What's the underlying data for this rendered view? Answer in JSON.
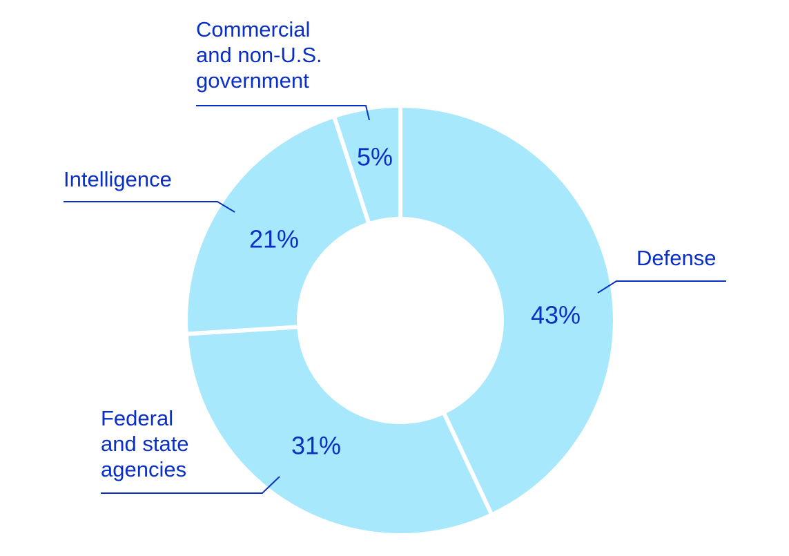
{
  "chart_data": {
    "type": "pie",
    "title": "",
    "style": "donut",
    "slices": [
      {
        "label": "Defense",
        "label_lines": [
          "Defense"
        ],
        "value": 43,
        "value_label": "43%"
      },
      {
        "label": "Federal and state agencies",
        "label_lines": [
          "Federal",
          "and state",
          "agencies"
        ],
        "value": 31,
        "value_label": "31%"
      },
      {
        "label": "Intelligence",
        "label_lines": [
          "Intelligence"
        ],
        "value": 21,
        "value_label": "21%"
      },
      {
        "label": "Commercial and non-U.S. government",
        "label_lines": [
          "Commercial",
          "and non-U.S.",
          "government"
        ],
        "value": 5,
        "value_label": "5%"
      }
    ],
    "colors": {
      "slice_fill": "#a8e8fc",
      "slice_separator": "#ffffff",
      "text": "#0a2fc4",
      "leader_line": "#0a2fc4"
    }
  }
}
